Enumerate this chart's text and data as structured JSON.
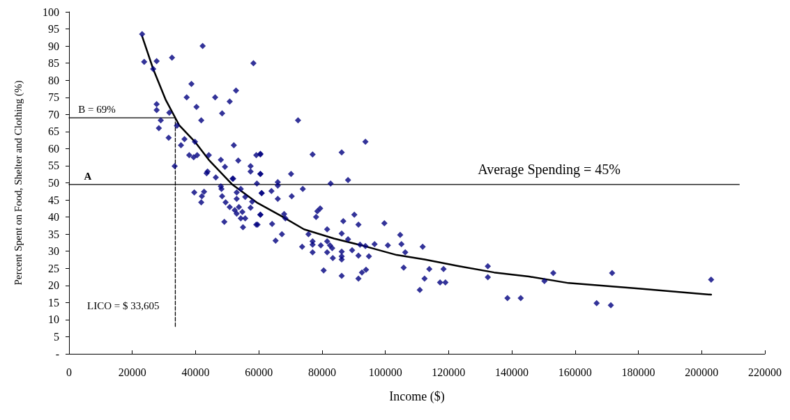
{
  "chart_data": {
    "type": "scatter",
    "xlabel": "Income ($)",
    "ylabel": "Percent Spent on Food, Shelter and Clothing (%)",
    "xlim": [
      0,
      220000
    ],
    "xticks": [
      0,
      20000,
      40000,
      60000,
      80000,
      100000,
      120000,
      140000,
      160000,
      180000,
      200000,
      220000
    ],
    "ylim": [
      0,
      100
    ],
    "yticks": [
      {
        "value": 0,
        "label": "-"
      },
      5,
      10,
      15,
      20,
      25,
      30,
      35,
      40,
      45,
      50,
      55,
      60,
      65,
      70,
      75,
      80,
      85,
      90,
      95,
      100
    ],
    "grid": false,
    "series": [
      {
        "color": "#000080",
        "marker": "diamond",
        "x": [
          23100,
          23760,
          27700,
          32560,
          42240,
          58300,
          26600,
          38700,
          52800,
          37200,
          46200,
          50800,
          27700,
          27700,
          40300,
          31700,
          48400,
          29000,
          41800,
          28400,
          34100,
          31500,
          36500,
          35400,
          39800,
          52100,
          38000,
          39400,
          40500,
          44200,
          48000,
          53500,
          59200,
          60500,
          33400,
          49300,
          57400,
          57400,
          60500,
          43800,
          43500,
          46400,
          51900,
          39600,
          42700,
          42000,
          41800,
          48000,
          48200,
          48400,
          49500,
          51700,
          53000,
          54300,
          53000,
          55700,
          50800,
          52400,
          53700,
          54800,
          53000,
          54300,
          55700,
          49100,
          55000,
          57900,
          57400,
          59200,
          60500,
          59400,
          60900,
          72400,
          93700,
          77000,
          86200,
          60500,
          60500,
          70200,
          88200,
          66000,
          66000,
          82700,
          64000,
          60900,
          73900,
          70400,
          66000,
          60500,
          59600,
          64200,
          68000,
          68400,
          67300,
          65300,
          79400,
          78500,
          78100,
          86700,
          90200,
          91500,
          99700,
          81600,
          75700,
          86200,
          88200,
          81600,
          77000,
          77000,
          82500,
          83200,
          79600,
          92000,
          93700,
          96600,
          100800,
          73700,
          77000,
          81600,
          86200,
          89500,
          86200,
          86200,
          83400,
          91500,
          94800,
          80500,
          86200,
          91500,
          92600,
          93900,
          104700,
          105100,
          106300,
          111800,
          105800,
          113900,
          118400,
          112400,
          117300,
          119000,
          110900,
          132400,
          132400,
          138600,
          142800,
          150300,
          153100,
          166800,
          171300,
          171700,
          203000
        ],
        "values": [
          93.5,
          85.4,
          85.6,
          86.6,
          90,
          85,
          83.3,
          78.9,
          77,
          75,
          75,
          73.8,
          73,
          71.3,
          72.2,
          70.5,
          70.3,
          68.3,
          68.3,
          66,
          66.7,
          63.2,
          62.8,
          61,
          62,
          61,
          58.1,
          57.5,
          58.1,
          58.1,
          56.7,
          56.5,
          58.1,
          58.5,
          54.9,
          54.7,
          54.9,
          53.3,
          52.6,
          53.3,
          52.8,
          51.6,
          51.2,
          47.2,
          47.4,
          46.1,
          44.3,
          49,
          48.2,
          46.1,
          44.3,
          51.2,
          47.2,
          48.2,
          45.3,
          45.9,
          42.9,
          42,
          42.9,
          41.5,
          41,
          39.6,
          39.6,
          38.6,
          37,
          44.5,
          42.7,
          37.8,
          40.7,
          49.8,
          47,
          68.3,
          62,
          58.3,
          58.9,
          58.3,
          52.6,
          52.6,
          50.8,
          50.2,
          49.2,
          49.8,
          47.6,
          47,
          48.2,
          46.1,
          45.3,
          40.7,
          37.8,
          38,
          40.9,
          39.6,
          35,
          33.1,
          42.5,
          41.7,
          40,
          38.8,
          40.7,
          37.8,
          38.2,
          36.4,
          35,
          35.2,
          33.5,
          32.9,
          32.9,
          31.9,
          31.7,
          30.9,
          31.7,
          31.9,
          31.5,
          32.1,
          31.7,
          31.3,
          29.7,
          29.7,
          29.9,
          30.3,
          28.5,
          27.6,
          28,
          28.7,
          28.5,
          24.4,
          22.8,
          22,
          23.8,
          24.6,
          34.8,
          32.1,
          29.7,
          31.3,
          25.2,
          24.8,
          24.8,
          22,
          20.9,
          20.9,
          18.7,
          25.6,
          22.4,
          16.3,
          16.3,
          21.3,
          23.6,
          14.8,
          14.2,
          23.6,
          21.7
        ]
      },
      {
        "type": "line",
        "color": "#000000",
        "x": [
          23100,
          26600,
          30600,
          34800,
          39800,
          44200,
          51500,
          59600,
          66900,
          74300,
          83800,
          92600,
          103600,
          112400,
          123400,
          134400,
          145400,
          157900,
          180000,
          203000
        ],
        "values": [
          92.9,
          83.3,
          74.2,
          66.9,
          62,
          56.7,
          49.6,
          44.1,
          40.4,
          36.4,
          33.7,
          31.7,
          28.9,
          27.6,
          25.6,
          23.8,
          22.6,
          20.7,
          19.1,
          17.3
        ]
      },
      {
        "type": "line",
        "color": "#000000",
        "line_style": "solid",
        "x": [
          0,
          211900
        ],
        "values": [
          49.5,
          49.5
        ]
      },
      {
        "type": "line",
        "color": "#000000",
        "line_style": "solid",
        "x": [
          0,
          33605
        ],
        "values": [
          69,
          69
        ]
      },
      {
        "type": "line",
        "color": "#000000",
        "line_style": "dashed",
        "x": [
          33605,
          33605
        ],
        "values": [
          8,
          69
        ]
      }
    ],
    "annotations": [
      "Average Spending = 45%",
      "A",
      "B = 69%",
      "LICO = $ 33,605"
    ]
  }
}
